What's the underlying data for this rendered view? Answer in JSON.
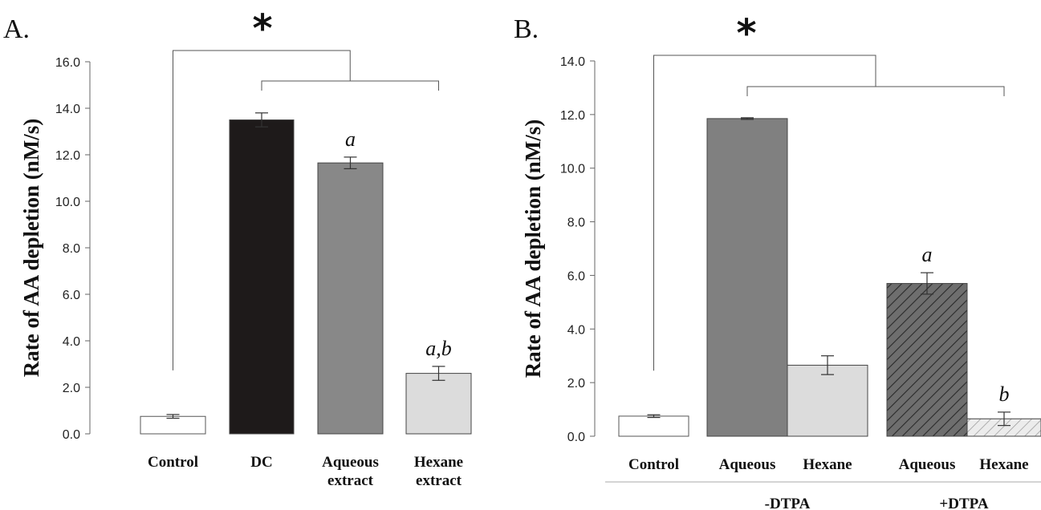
{
  "chart_data": [
    {
      "type": "bar",
      "panel_label": "A.",
      "ylabel": "Rate of AA depletion (nM/s)",
      "ylim": [
        0,
        16
      ],
      "yticks": [
        "0.0",
        "2.0",
        "4.0",
        "6.0",
        "8.0",
        "10.0",
        "12.0",
        "14.0",
        "16.0"
      ],
      "categories": [
        [
          "Control"
        ],
        [
          "DC"
        ],
        [
          "Aqueous",
          "extract"
        ],
        [
          "Hexane",
          "extract"
        ]
      ],
      "values": [
        0.75,
        13.5,
        11.65,
        2.6
      ],
      "errors": [
        0.08,
        0.3,
        0.25,
        0.3
      ],
      "colors": [
        "#ffffff",
        "#1e1a1a",
        "#888888",
        "#dcdcdc"
      ],
      "hatched": [
        false,
        false,
        false,
        false
      ],
      "annotations": [
        "",
        "",
        "a",
        "a,b"
      ],
      "significance": "*"
    },
    {
      "type": "bar",
      "panel_label": "B.",
      "ylabel": "Rate of AA depletion (nM/s)",
      "ylim": [
        0,
        14
      ],
      "yticks": [
        "0.0",
        "2.0",
        "4.0",
        "6.0",
        "8.0",
        "10.0",
        "12.0",
        "14.0"
      ],
      "categories": [
        [
          "Control"
        ],
        [
          "Aqueous"
        ],
        [
          "Hexane"
        ],
        [
          "Aqueous"
        ],
        [
          "Hexane"
        ]
      ],
      "values": [
        0.75,
        11.85,
        2.65,
        5.7,
        0.65
      ],
      "errors": [
        0.05,
        0.03,
        0.35,
        0.4,
        0.25
      ],
      "colors": [
        "#ffffff",
        "#808080",
        "#dcdcdc",
        "#6e6e6e",
        "#e4e4e4"
      ],
      "hatched": [
        false,
        false,
        false,
        true,
        true
      ],
      "annotations": [
        "",
        "",
        "",
        "a",
        "b"
      ],
      "groups": [
        "-DTPA",
        "+DTPA"
      ],
      "significance": "*"
    }
  ]
}
